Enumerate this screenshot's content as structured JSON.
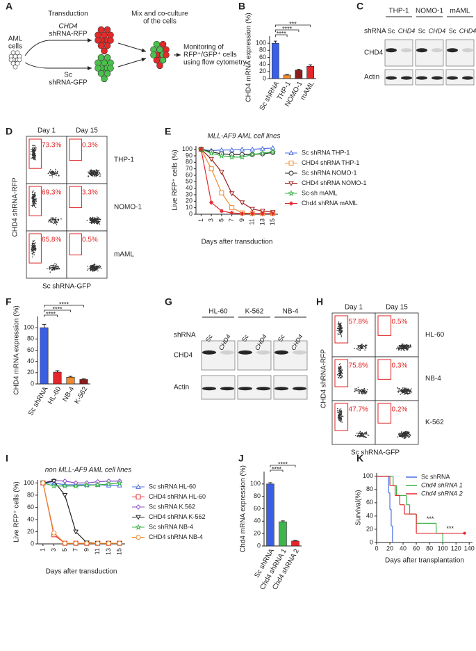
{
  "panel_a": {
    "label": "A",
    "cells": [
      "AML",
      "cells"
    ],
    "transduction": "Transduction",
    "chd4_vector": [
      "CHD4",
      "shRNA-RFP"
    ],
    "sc_vector": [
      "Sc",
      "shRNA-GFP"
    ],
    "mix": [
      "Mix and co-culture",
      "of the cells"
    ],
    "monitor": [
      "Monitoring of",
      "RFP⁺/GFP⁺ cells",
      "using flow cytometry"
    ]
  },
  "panel_c": {
    "label": "C",
    "groups": [
      "THP-1",
      "NOMO-1",
      "mAML"
    ],
    "shrna": "shRNA",
    "lanes": [
      "Sc",
      "CHD4",
      "Sc",
      "CHD4",
      "Sc",
      "CHD4"
    ],
    "rows": [
      "CHD4",
      "Actin"
    ]
  },
  "panel_d": {
    "label": "D",
    "days": [
      "Day 1",
      "Day 15"
    ],
    "rows": [
      {
        "name": "THP-1",
        "gates": [
          "73.3%",
          "0.3%"
        ]
      },
      {
        "name": "NOMO-1",
        "gates": [
          "69.3%",
          "3.3%"
        ]
      },
      {
        "name": "mAML",
        "gates": [
          "65.8%",
          "0.5%"
        ]
      }
    ],
    "y_label": "CHD4 shRNA-RFP",
    "x_label": "Sc shRNA-GFP"
  },
  "panel_g": {
    "label": "G",
    "groups": [
      "HL-60",
      "K-562",
      "NB-4"
    ],
    "shrna": "shRNA",
    "lanes": [
      "Sc",
      "CHD4",
      "Sc",
      "CHD4",
      "Sc",
      "CHD4"
    ],
    "rows": [
      "CHD4",
      "Actin"
    ]
  },
  "panel_h": {
    "label": "H",
    "days": [
      "Day 1",
      "Day 15"
    ],
    "rows": [
      {
        "name": "HL-60",
        "gates": [
          "57.8%",
          "0.5%"
        ]
      },
      {
        "name": "NB-4",
        "gates": [
          "75.8%",
          "0.3%"
        ]
      },
      {
        "name": "K-562",
        "gates": [
          "47.7%",
          "0.2%"
        ]
      }
    ],
    "y_label": "CHD4 shRNA-RFP",
    "x_label": "Sc shRNA-GFP"
  },
  "chart_data": [
    {
      "panel_label": "B",
      "type": "bar",
      "y_label": "CHD4 mRNA expression (%)",
      "categories": [
        "Sc shRNA",
        "THP-1",
        "NOMO-1",
        "mAML"
      ],
      "values": [
        100,
        10,
        24,
        35
      ],
      "errors": [
        6,
        1.5,
        2.5,
        4
      ],
      "colors": [
        "#3a5fe5",
        "#f08a2c",
        "#8c1c1c",
        "#e3262b"
      ],
      "ylim": [
        0,
        120
      ],
      "yticks": [
        0,
        20,
        40,
        60,
        80,
        100
      ],
      "significance": [
        "****",
        "****",
        "***"
      ]
    },
    {
      "panel_label": "E",
      "type": "line",
      "title": "MLL-AF9 AML cell lines",
      "y_label": "Live RFP⁺ cells (%)",
      "x_label": "Days after transduction",
      "x": [
        1,
        3,
        5,
        7,
        9,
        11,
        13,
        15
      ],
      "xlim": [
        0,
        16
      ],
      "xticks": [
        1,
        3,
        5,
        7,
        9,
        11,
        13,
        15
      ],
      "ylim": [
        0,
        105
      ],
      "yticks": [
        0,
        10,
        20,
        30,
        40,
        50,
        60,
        70,
        80,
        90,
        100
      ],
      "legend": "right",
      "series": [
        {
          "name": "Sc shRNA THP-1",
          "color": "#4a6fe3",
          "marker": "triangle",
          "values": [
            100,
            98,
            99,
            99,
            100,
            100,
            101,
            102
          ]
        },
        {
          "name": "CHD4 shRNA THP-1",
          "color": "#f08a2c",
          "marker": "square",
          "values": [
            100,
            70,
            33,
            10,
            2,
            1,
            1,
            1
          ]
        },
        {
          "name": "Sc shRNA NOMO-1",
          "color": "#222222",
          "marker": "circle",
          "values": [
            100,
            96,
            93,
            92,
            92,
            92,
            93,
            95
          ]
        },
        {
          "name": "CHD4 shRNA NOMO-1",
          "color": "#9c1c1c",
          "marker": "triangle-down",
          "values": [
            100,
            85,
            65,
            32,
            18,
            8,
            5,
            3
          ]
        },
        {
          "name": "Sc-sh mAML",
          "color": "#3cb54a",
          "marker": "star",
          "values": [
            100,
            94,
            90,
            88,
            88,
            92,
            94,
            96
          ]
        },
        {
          "name": "Chd4 shRNA mAML",
          "color": "#e3262b",
          "marker": "asterisk",
          "values": [
            100,
            18,
            5,
            2,
            1,
            1,
            1,
            1
          ]
        }
      ]
    },
    {
      "panel_label": "F",
      "type": "bar",
      "y_label": "CHD4 mRNA expression (%)",
      "categories": [
        "Sc shRNA",
        "HL-60",
        "NB-4",
        "K-562"
      ],
      "values": [
        100,
        21,
        12,
        8
      ],
      "errors": [
        6,
        2.5,
        1.5,
        1
      ],
      "colors": [
        "#3a5fe5",
        "#e3262b",
        "#f08a2c",
        "#8c1c1c"
      ],
      "ylim": [
        0,
        120
      ],
      "yticks": [
        0,
        20,
        40,
        60,
        80,
        100
      ],
      "significance": [
        "****",
        "****",
        "****"
      ]
    },
    {
      "panel_label": "I",
      "type": "line",
      "title": "non MLL-AF9 AML cell lines",
      "y_label": "Live RFP⁺ cells (%)",
      "x_label": "Days after transduction",
      "x": [
        1,
        3,
        5,
        7,
        9,
        11,
        13,
        15
      ],
      "xlim": [
        0,
        16
      ],
      "xticks": [
        1,
        3,
        5,
        7,
        9,
        11,
        13,
        15
      ],
      "ylim": [
        0,
        105
      ],
      "yticks": [
        0,
        20,
        40,
        60,
        80,
        100
      ],
      "legend": "right",
      "series": [
        {
          "name": "Sc shRNA HL-60",
          "color": "#4a6fe3",
          "marker": "triangle",
          "values": [
            100,
            100,
            97,
            97,
            97,
            97,
            96,
            96
          ]
        },
        {
          "name": "CHD4 shRNA HL-60",
          "color": "#e3262b",
          "marker": "square",
          "values": [
            100,
            15,
            1,
            1,
            1,
            1,
            1,
            1
          ]
        },
        {
          "name": "Sc shRNA K.562",
          "color": "#8a4fc4",
          "marker": "diamond",
          "values": [
            100,
            104,
            103,
            100,
            100,
            102,
            103,
            103
          ]
        },
        {
          "name": "CHD4 shRNA K-562",
          "color": "#222222",
          "marker": "triangle-down",
          "values": [
            100,
            103,
            80,
            20,
            2,
            1,
            1,
            1
          ]
        },
        {
          "name": "Sc shRNA NB-4",
          "color": "#3cb54a",
          "marker": "star",
          "values": [
            100,
            95,
            95,
            95,
            96,
            97,
            98,
            100
          ]
        },
        {
          "name": "CHD4 shRNA NB-4",
          "color": "#f08a2c",
          "marker": "circle",
          "values": [
            100,
            18,
            1,
            1,
            1,
            1,
            1,
            1
          ]
        }
      ]
    },
    {
      "panel_label": "J",
      "type": "bar",
      "y_label": "Chd4 mRNA expression (%)",
      "categories": [
        "Sc shRNA",
        "Chd4 shRNA 1",
        "Chd4 shRNA 2"
      ],
      "values": [
        100,
        39,
        8
      ],
      "errors": [
        2,
        1.5,
        1
      ],
      "colors": [
        "#3a5fe5",
        "#3cb54a",
        "#e3262b"
      ],
      "ylim": [
        0,
        120
      ],
      "yticks": [
        0,
        20,
        40,
        60,
        80,
        100
      ],
      "significance": [
        "****",
        "****"
      ]
    },
    {
      "panel_label": "K",
      "type": "survival",
      "y_label": "Survival(%)",
      "x_label": "Days after transplantation",
      "xlim": [
        0,
        145
      ],
      "xticks": [
        0,
        20,
        40,
        60,
        80,
        100,
        120,
        140
      ],
      "ylim": [
        0,
        105
      ],
      "yticks": [
        0,
        20,
        40,
        60,
        80,
        100
      ],
      "legend": "upper right",
      "series": [
        {
          "name": "Sc shRNA",
          "color": "#4a6fe3",
          "x": [
            0,
            18,
            20,
            22,
            24
          ],
          "values": [
            100,
            75,
            50,
            25,
            0
          ]
        },
        {
          "name": "Chd4 shRNA 1",
          "color": "#3cb54a",
          "x": [
            0,
            25,
            30,
            45,
            50,
            60,
            90,
            100
          ],
          "values": [
            100,
            86,
            71,
            57,
            43,
            29,
            14,
            0
          ],
          "significance": "***"
        },
        {
          "name": "Chd4 shRNA 2",
          "color": "#e3262b",
          "x": [
            0,
            20,
            28,
            35,
            42,
            60,
            133
          ],
          "values": [
            100,
            86,
            71,
            57,
            43,
            14,
            14
          ],
          "end_marker": true,
          "significance": "***"
        }
      ]
    }
  ]
}
